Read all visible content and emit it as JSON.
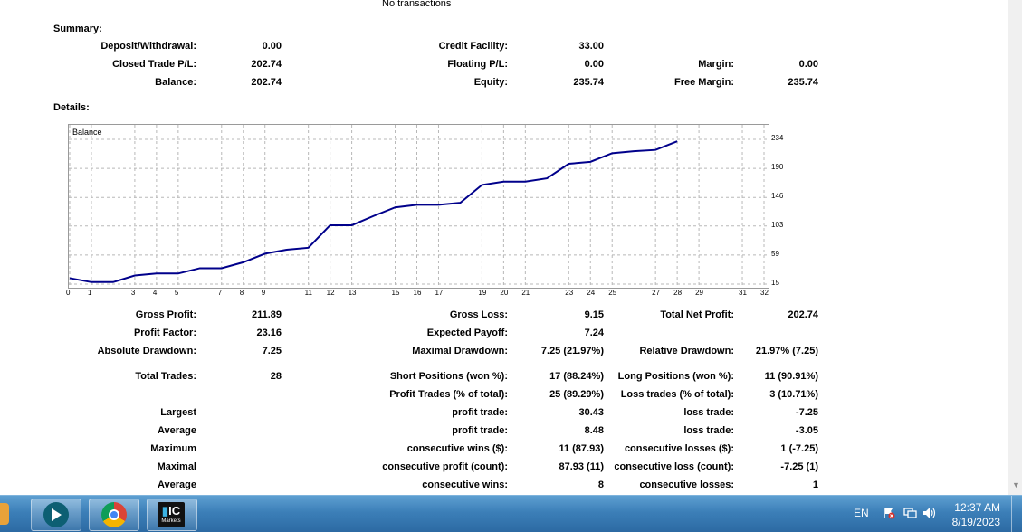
{
  "header": {
    "no_transactions": "No transactions"
  },
  "summary": {
    "title": "Summary:",
    "deposit_label": "Deposit/Withdrawal:",
    "deposit_value": "0.00",
    "credit_label": "Credit Facility:",
    "credit_value": "33.00",
    "closed_pl_label": "Closed Trade P/L:",
    "closed_pl_value": "202.74",
    "floating_pl_label": "Floating P/L:",
    "floating_pl_value": "0.00",
    "margin_label": "Margin:",
    "margin_value": "0.00",
    "balance_label": "Balance:",
    "balance_value": "202.74",
    "equity_label": "Equity:",
    "equity_value": "235.74",
    "free_margin_label": "Free Margin:",
    "free_margin_value": "235.74"
  },
  "details": {
    "title": "Details:"
  },
  "chart_data": {
    "type": "line",
    "legend": "Balance",
    "x_ticks": [
      "0",
      "1",
      "3",
      "4",
      "5",
      "7",
      "8",
      "9",
      "11",
      "12",
      "13",
      "15",
      "16",
      "17",
      "19",
      "20",
      "21",
      "23",
      "24",
      "25",
      "27",
      "28",
      "29",
      "31",
      "32"
    ],
    "y_ticks": [
      "234",
      "190",
      "146",
      "103",
      "59",
      "15"
    ],
    "ylim": [
      15,
      234
    ],
    "grid": true,
    "series": [
      {
        "values": [
          24,
          18,
          18,
          28,
          31,
          31,
          39,
          39,
          48,
          61,
          67,
          70,
          104,
          104,
          118,
          131,
          135,
          135,
          138,
          165,
          170,
          170,
          175,
          197,
          200,
          213,
          216,
          218,
          231
        ]
      }
    ],
    "line_color": "#00008b"
  },
  "stats": {
    "gross_profit_label": "Gross Profit:",
    "gross_profit_value": "211.89",
    "gross_loss_label": "Gross Loss:",
    "gross_loss_value": "9.15",
    "total_net_profit_label": "Total Net Profit:",
    "total_net_profit_value": "202.74",
    "profit_factor_label": "Profit Factor:",
    "profit_factor_value": "23.16",
    "expected_payoff_label": "Expected Payoff:",
    "expected_payoff_value": "7.24",
    "abs_drawdown_label": "Absolute Drawdown:",
    "abs_drawdown_value": "7.25",
    "max_drawdown_label": "Maximal Drawdown:",
    "max_drawdown_value": "7.25 (21.97%)",
    "rel_drawdown_label": "Relative Drawdown:",
    "rel_drawdown_value": "21.97% (7.25)",
    "total_trades_label": "Total Trades:",
    "total_trades_value": "28",
    "short_label": "Short Positions (won %):",
    "short_value": "17 (88.24%)",
    "long_label": "Long Positions (won %):",
    "long_value": "11 (90.91%)",
    "profit_trades_label": "Profit Trades (% of total):",
    "profit_trades_value": "25 (89.29%)",
    "loss_trades_label": "Loss trades (% of total):",
    "loss_trades_value": "3 (10.71%)",
    "largest_label": "Largest",
    "largest_profit_label": "profit trade:",
    "largest_profit_value": "30.43",
    "largest_loss_label": "loss trade:",
    "largest_loss_value": "-7.25",
    "average_label": "Average",
    "average_profit_label": "profit trade:",
    "average_profit_value": "8.48",
    "average_loss_label": "loss trade:",
    "average_loss_value": "-3.05",
    "maximum_label": "Maximum",
    "max_cons_wins_label": "consecutive wins ($):",
    "max_cons_wins_value": "11 (87.93)",
    "max_cons_losses_label": "consecutive losses ($):",
    "max_cons_losses_value": "1 (-7.25)",
    "maximal_label": "Maximal",
    "maximal_cons_profit_label": "consecutive profit (count):",
    "maximal_cons_profit_value": "87.93 (11)",
    "maximal_cons_loss_label": "consecutive loss (count):",
    "maximal_cons_loss_value": "-7.25 (1)",
    "average2_label": "Average",
    "avg_cons_wins_label": "consecutive wins:",
    "avg_cons_wins_value": "8",
    "avg_cons_losses_label": "consecutive losses:",
    "avg_cons_losses_value": "1"
  },
  "taskbar": {
    "apps": [
      {
        "icon": "arrow-app-icon"
      },
      {
        "icon": "chrome-icon"
      },
      {
        "icon": "ic-markets-icon",
        "text": "IC",
        "subtext": "Markets"
      }
    ],
    "lang": "EN",
    "time": "12:37 AM",
    "date": "8/19/2023"
  }
}
